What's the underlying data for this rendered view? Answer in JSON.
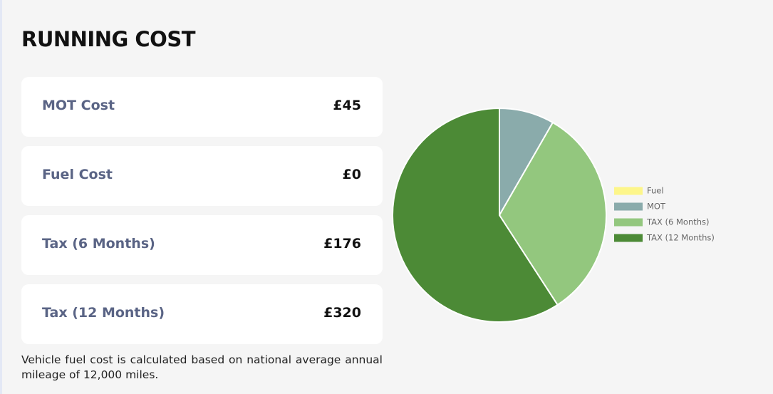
{
  "header": {
    "title": "RUNNING COST"
  },
  "cards": [
    {
      "label": "MOT Cost",
      "value": "£45"
    },
    {
      "label": "Fuel Cost",
      "value": "£0"
    },
    {
      "label": "Tax (6 Months)",
      "value": "£176"
    },
    {
      "label": "Tax (12 Months)",
      "value": "£320"
    }
  ],
  "note": "Vehicle fuel cost is calculated based on national average annual mileage of 12,000 miles.",
  "chart_data": {
    "type": "pie",
    "categories": [
      "Fuel",
      "MOT",
      "TAX (6 Months)",
      "TAX (12 Months)"
    ],
    "values": [
      0,
      45,
      176,
      320
    ],
    "colors": [
      "#fdf68a",
      "#8aabab",
      "#93c77e",
      "#4c8a36"
    ]
  }
}
